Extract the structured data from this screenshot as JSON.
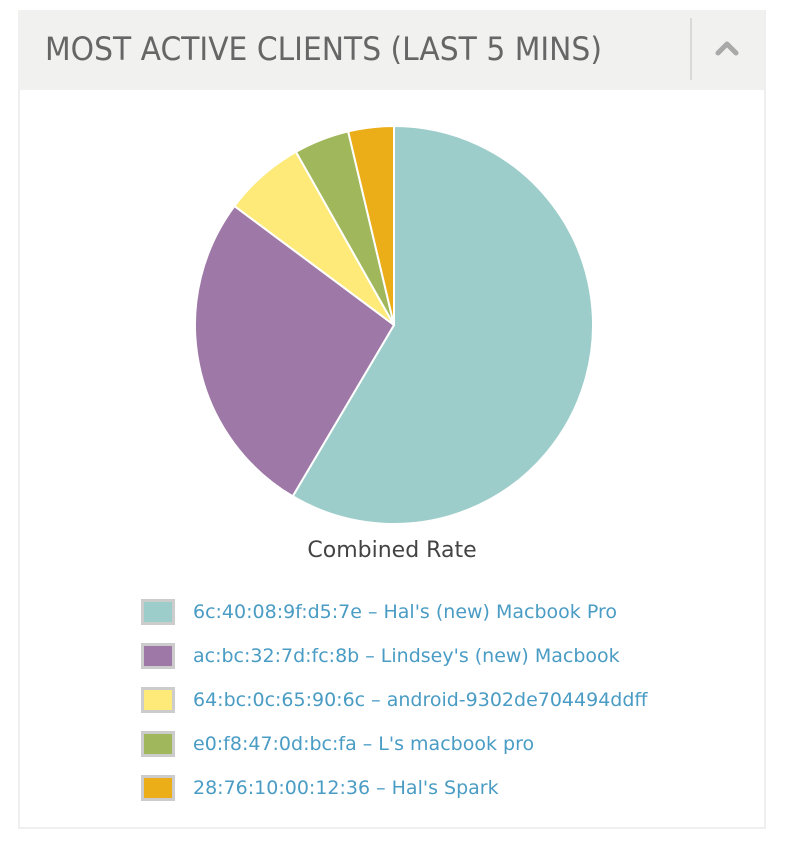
{
  "panel": {
    "title": "MOST ACTIVE CLIENTS (LAST 5 MINS)",
    "collapse_icon": "chevron-up-icon"
  },
  "chart_data": {
    "type": "pie",
    "title": "Combined Rate",
    "legend_position": "bottom",
    "categories": [
      "6c:40:08:9f:d5:7e – Hal's (new) Macbook Pro",
      "ac:bc:32:7d:fc:8b – Lindsey's (new) Macbook",
      "64:bc:0c:65:90:6c – android-9302de704494ddff",
      "e0:f8:47:0d:bc:fa – L's macbook pro",
      "28:76:10:00:12:36 – Hal's Spark"
    ],
    "values": [
      58.5,
      26.7,
      6.6,
      4.5,
      3.7
    ],
    "colors": [
      "#9dcdca",
      "#9e78a7",
      "#feea78",
      "#a1b75b",
      "#ebae19"
    ]
  },
  "legend": {
    "items": [
      {
        "label": "6c:40:08:9f:d5:7e – Hal's (new) Macbook Pro",
        "color": "#9dcdca"
      },
      {
        "label": "ac:bc:32:7d:fc:8b – Lindsey's (new) Macbook",
        "color": "#9e78a7"
      },
      {
        "label": "64:bc:0c:65:90:6c – android-9302de704494ddff",
        "color": "#feea78"
      },
      {
        "label": "e0:f8:47:0d:bc:fa – L's macbook pro",
        "color": "#a1b75b"
      },
      {
        "label": "28:76:10:00:12:36 – Hal's Spark",
        "color": "#ebae19"
      }
    ]
  }
}
